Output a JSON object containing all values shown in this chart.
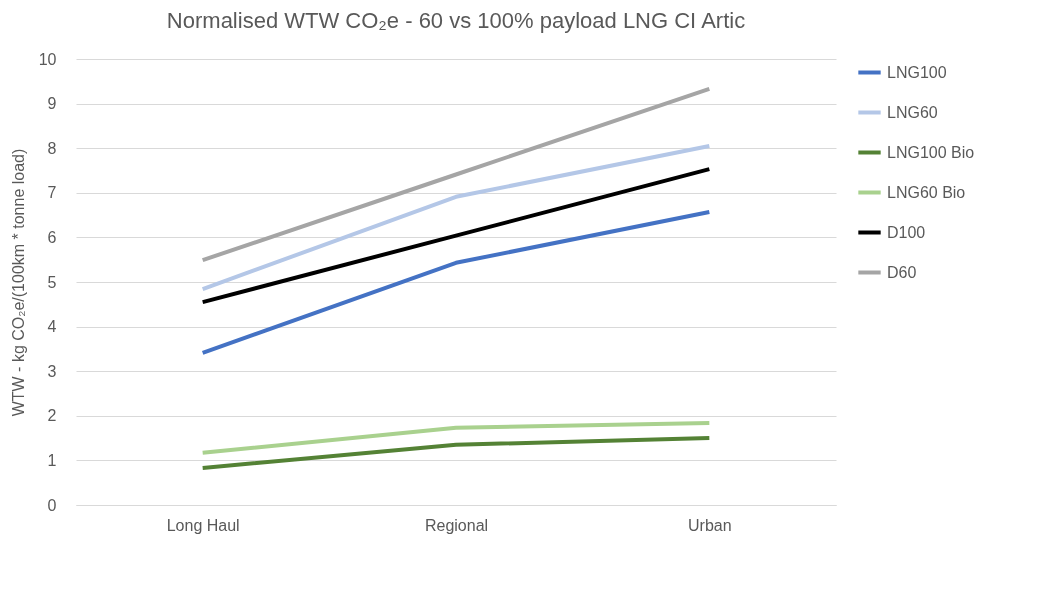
{
  "chart_data": {
    "type": "line",
    "title": "Normalised WTW CO₂e - 60 vs 100% payload LNG CI Artic",
    "ylabel": "WTW - kg CO₂e/(100km * tonne load)",
    "categories": [
      "Long Haul",
      "Regional",
      "Urban"
    ],
    "series": [
      {
        "name": "LNG100",
        "color": "#4472c4",
        "values": [
          3.41,
          5.43,
          6.57
        ]
      },
      {
        "name": "LNG60",
        "color": "#b4c7e7",
        "values": [
          4.84,
          6.91,
          8.05
        ]
      },
      {
        "name": "LNG100 Bio",
        "color": "#548235",
        "values": [
          0.83,
          1.35,
          1.5
        ]
      },
      {
        "name": "LNG60 Bio",
        "color": "#a9d18e",
        "values": [
          1.17,
          1.73,
          1.84
        ]
      },
      {
        "name": "D100",
        "color": "#000000",
        "values": [
          4.55,
          6.04,
          7.53
        ]
      },
      {
        "name": "D60",
        "color": "#a5a5a5",
        "values": [
          5.49,
          7.41,
          9.33
        ]
      }
    ],
    "ylim": [
      0,
      10
    ],
    "yticks": [
      0,
      1,
      2,
      3,
      4,
      5,
      6,
      7,
      8,
      9,
      10
    ],
    "grid": "y",
    "legend": "right",
    "marker": "none",
    "line_style": "solid"
  }
}
